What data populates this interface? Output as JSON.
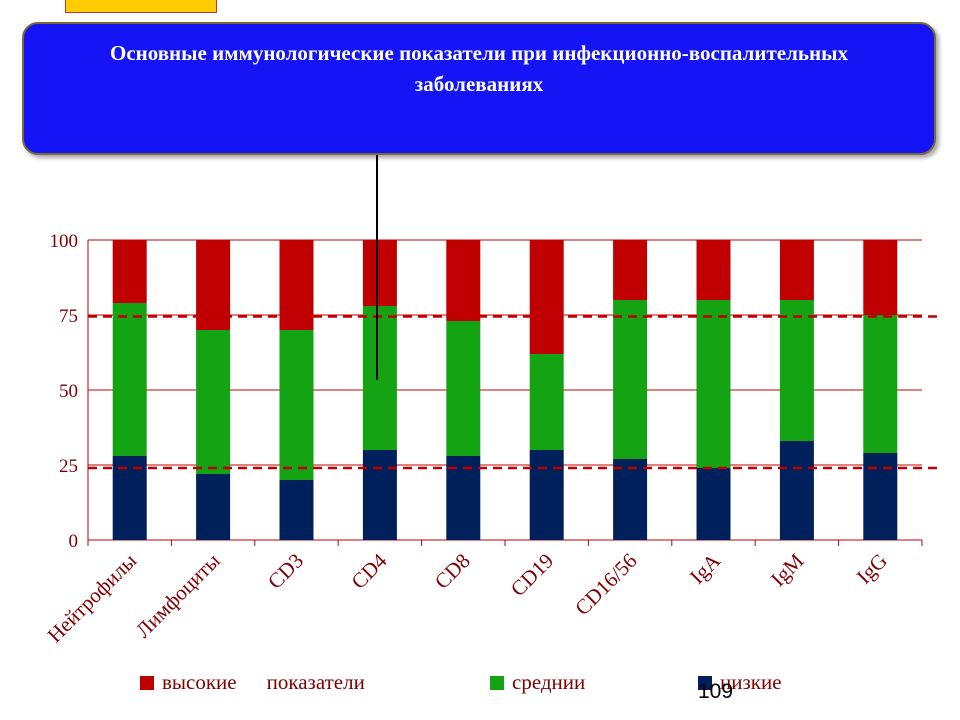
{
  "title": "Основные иммунологические показатели при инфекционно-воспалительных заболеваниях",
  "page_number": "109",
  "colors": {
    "high": "#c00000",
    "medium": "#13a313",
    "low": "#00205c",
    "axis_text": "#7f0000",
    "reference_line": "#c00000",
    "title_box": "#1414f5"
  },
  "legend": {
    "high_label": "высокие",
    "high_label_2": "показатели",
    "medium_label": "среднии",
    "low_label": "низкие"
  },
  "chart_data": {
    "type": "bar",
    "stacked": true,
    "categories": [
      "Нейтрофилы",
      "Лимфоциты",
      "CD3",
      "CD4",
      "CD8",
      "CD19",
      "CD16/56",
      "IgA",
      "IgM",
      "IgG"
    ],
    "series": [
      {
        "name": "низкие",
        "values": [
          28,
          22,
          20,
          30,
          28,
          30,
          27,
          24,
          33,
          29
        ]
      },
      {
        "name": "среднии",
        "values": [
          51,
          48,
          50,
          48,
          45,
          32,
          53,
          56,
          47,
          46
        ]
      },
      {
        "name": "высокие показатели",
        "values": [
          21,
          30,
          30,
          22,
          27,
          38,
          20,
          20,
          20,
          25
        ]
      }
    ],
    "ylim": [
      0,
      100
    ],
    "yticks": [
      0,
      25,
      50,
      75,
      100
    ],
    "reference_lines": [
      24,
      74.5
    ],
    "grid": "horizontal",
    "legend_position": "bottom"
  }
}
